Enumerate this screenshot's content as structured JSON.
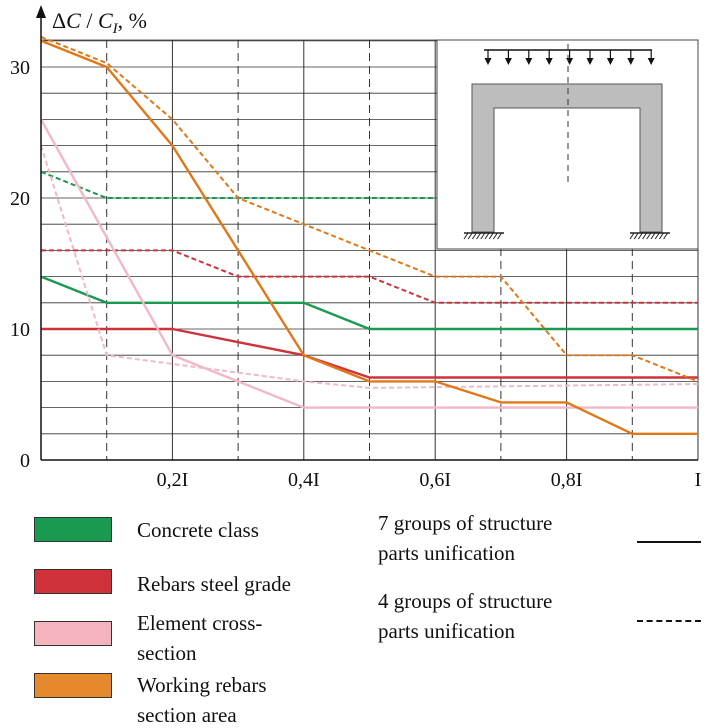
{
  "chart_data": {
    "type": "line",
    "ylabel": "ΔC / C_I, %",
    "ylim": [
      0,
      34
    ],
    "xlim": [
      0,
      1
    ],
    "y_ticks": [
      "0",
      "10",
      "20",
      "30"
    ],
    "x_ticks": [
      {
        "x": 0.2,
        "label": "0,2I"
      },
      {
        "x": 0.4,
        "label": "0,4I"
      },
      {
        "x": 0.6,
        "label": "0,6I"
      },
      {
        "x": 0.8,
        "label": "0,8I"
      },
      {
        "x": 1.0,
        "label": "I"
      }
    ],
    "grid": true,
    "series": [
      {
        "name": "Concrete class",
        "color": "#1a9a50",
        "dash": false,
        "x": [
          0,
          0.1,
          0.4,
          0.5,
          1.0
        ],
        "y": [
          14,
          12,
          12,
          10,
          10
        ]
      },
      {
        "name": "Concrete class",
        "color": "#1a9a50",
        "dash": true,
        "x": [
          0,
          0.1,
          0.6
        ],
        "y": [
          22,
          20,
          20
        ]
      },
      {
        "name": "Rebars steel grade",
        "color": "#d0323c",
        "dash": false,
        "x": [
          0,
          0.2,
          0.4,
          0.5,
          1.0
        ],
        "y": [
          10,
          10,
          8,
          6.3,
          6.3
        ]
      },
      {
        "name": "Rebars steel grade",
        "color": "#d0323c",
        "dash": true,
        "x": [
          0,
          0.2,
          0.3,
          0.5,
          0.6,
          1.0
        ],
        "y": [
          16,
          16,
          14,
          14,
          12,
          12
        ]
      },
      {
        "name": "Element cross-section",
        "color": "#f2b8c6",
        "dash": false,
        "x": [
          0,
          0.2,
          0.4,
          1.0
        ],
        "y": [
          26,
          8,
          4,
          4
        ]
      },
      {
        "name": "Element cross-section",
        "color": "#f2b8c6",
        "dash": true,
        "x": [
          0,
          0.1,
          0.4,
          0.5,
          1.0
        ],
        "y": [
          24,
          8,
          6,
          5.5,
          5.8
        ]
      },
      {
        "name": "Working rebars section area",
        "color": "#e07818",
        "dash": false,
        "x": [
          0,
          0.1,
          0.2,
          0.4,
          0.5,
          0.6,
          0.7,
          0.8,
          0.9,
          1.0
        ],
        "y": [
          32,
          30,
          24,
          8,
          6,
          6,
          4.4,
          4.4,
          2,
          2
        ]
      },
      {
        "name": "Working rebars section area",
        "color": "#e07818",
        "dash": true,
        "x": [
          0,
          0.1,
          0.2,
          0.3,
          0.5,
          0.6,
          0.7,
          0.8,
          0.9,
          1.0
        ],
        "y": [
          32.3,
          30.3,
          26,
          20,
          16,
          14,
          14,
          8,
          8,
          6
        ]
      }
    ]
  },
  "legend": {
    "items": [
      {
        "label_lines": [
          "Concrete class"
        ],
        "color": "#1a9a50"
      },
      {
        "label_lines": [
          "Rebars steel grade"
        ],
        "color": "#d0323c"
      },
      {
        "label_lines": [
          "Element cross-",
          "section"
        ],
        "color": "#f4b3bd"
      },
      {
        "label_lines": [
          "Working rebars",
          "section area"
        ],
        "color": "#e48a2c"
      }
    ],
    "linestyles": [
      {
        "label_lines": [
          "7 groups of structure",
          "parts unification"
        ],
        "style": "solid"
      },
      {
        "label_lines": [
          "4 groups of structure",
          "parts unification"
        ],
        "style": "dashed"
      }
    ]
  }
}
